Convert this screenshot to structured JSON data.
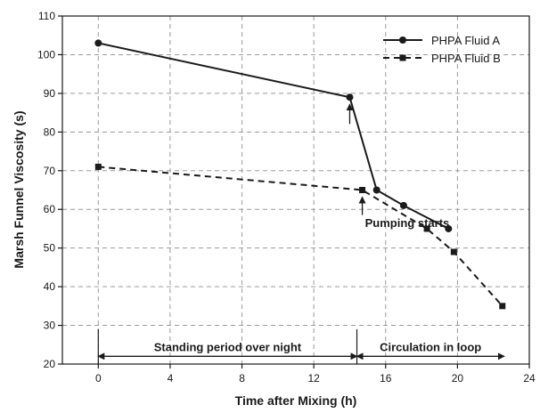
{
  "chart_data": {
    "type": "line",
    "xlabel": "Time after Mixing (h)",
    "ylabel": "Marsh Funnel Viscosity (s)",
    "xlim": [
      -2,
      24
    ],
    "ylim": [
      20,
      110
    ],
    "xticks": [
      0,
      4,
      8,
      12,
      16,
      20,
      24
    ],
    "yticks": [
      20,
      30,
      40,
      50,
      60,
      70,
      80,
      90,
      100,
      110
    ],
    "grid": true,
    "legend_position": "top-right",
    "series": [
      {
        "name": "PHPA Fluid A",
        "style": "solid",
        "marker": "circle",
        "x": [
          0,
          14,
          15.5,
          17,
          19.5
        ],
        "y": [
          103,
          89,
          65,
          61,
          55
        ]
      },
      {
        "name": "PHPA Fluid B",
        "style": "dashed",
        "marker": "square",
        "x": [
          0,
          14.7,
          18.3,
          19.8,
          22.5
        ],
        "y": [
          71,
          65,
          55,
          49,
          35
        ]
      }
    ],
    "annotations": {
      "pumping_starts": "Pumping starts",
      "standing_period": "Standing period over night",
      "circulation": "Circulation in loop"
    },
    "colors": {
      "line": "#1a1a1a",
      "grid": "#9a9a9a"
    }
  }
}
